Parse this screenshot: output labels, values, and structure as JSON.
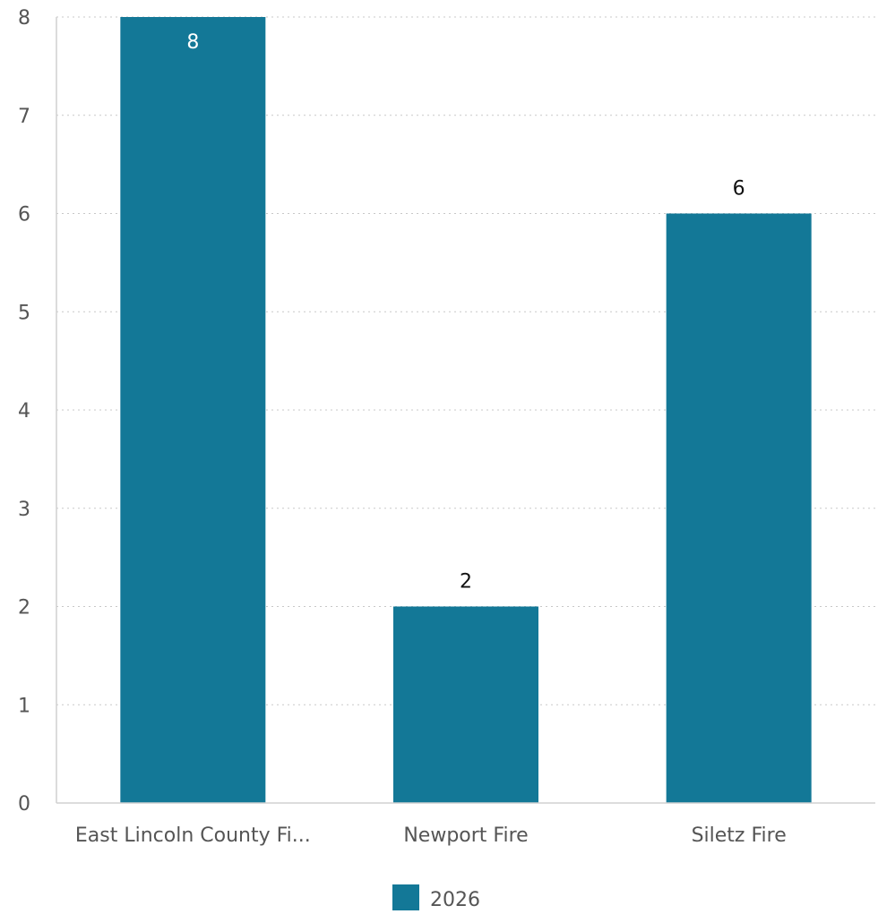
{
  "chart_data": {
    "type": "bar",
    "categories": [
      "East Lincoln County Fi...",
      "Newport Fire",
      "Siletz Fire"
    ],
    "series": [
      {
        "name": "2026",
        "values": [
          8,
          2,
          6
        ],
        "color": "#137897"
      }
    ],
    "ylim": [
      0,
      8
    ],
    "yticks": [
      "0",
      "1",
      "2",
      "3",
      "4",
      "5",
      "6",
      "7",
      "8"
    ],
    "grid": true,
    "legend_position": "bottom-center",
    "data_labels": [
      "8",
      "2",
      "6"
    ]
  }
}
